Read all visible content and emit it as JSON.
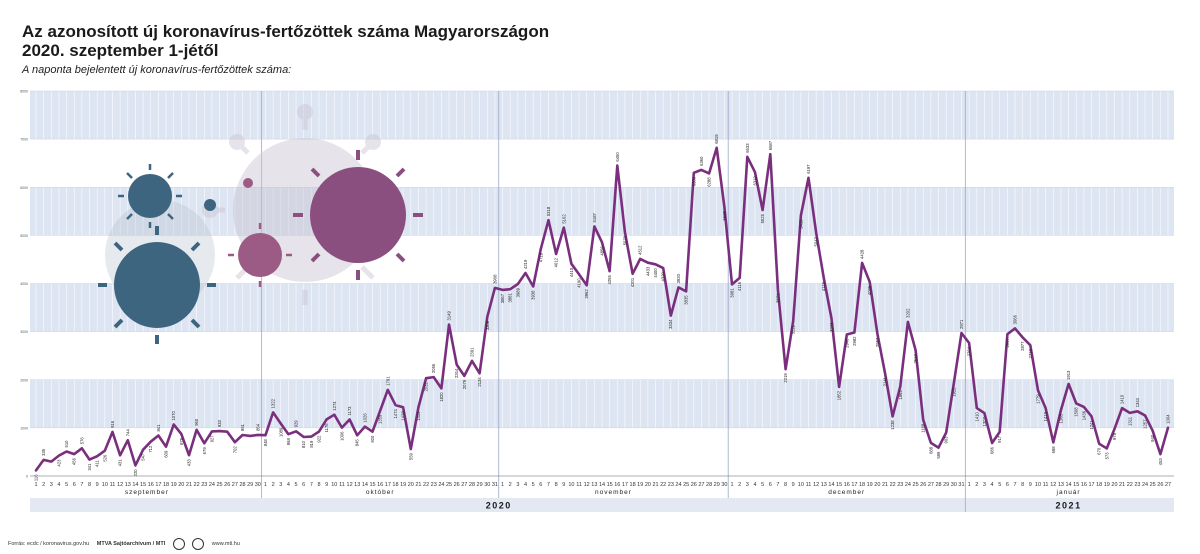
{
  "header": {
    "title_line1": "Az azonosított új koronavírus-fertőzöttek száma Magyarországon",
    "title_line2": "2020. szeptember 1-jétől",
    "subtitle": "A naponta bejelentett új koronavírus-fertőzöttek száma:"
  },
  "footer": {
    "source": "Forrás: ecdc / koronavirus.gov.hu",
    "credit": "MTVA Sajtóarchívum / MTI",
    "website": "www.mti.hu"
  },
  "chart_data": {
    "type": "line",
    "ylim": [
      0,
      8000
    ],
    "yticks": [
      0,
      1000,
      2000,
      3000,
      4000,
      5000,
      6000,
      7000,
      8000
    ],
    "grid": true,
    "colors": {
      "line": "#7a2f7e",
      "band": "#dde4f2",
      "month_divider": "#9aaac8",
      "year_bar": "#e3e8f3"
    },
    "years": [
      {
        "label": "2020",
        "start_index": 0,
        "end_index": 121
      },
      {
        "label": "2021",
        "start_index": 122,
        "end_index": 148
      }
    ],
    "months": [
      {
        "label": "szeptember",
        "days": 30
      },
      {
        "label": "október",
        "days": 31
      },
      {
        "label": "november",
        "days": 30
      },
      {
        "label": "december",
        "days": 31
      },
      {
        "label": "január",
        "days": 27
      }
    ],
    "values": [
      116,
      335,
      300,
      423,
      510,
      456,
      576,
      341,
      411,
      526,
      916,
      431,
      744,
      220,
      547,
      712,
      841,
      609,
      1070,
      875,
      433,
      960,
      679,
      927,
      933,
      920,
      702,
      851,
      833,
      854,
      848,
      1322,
      1089,
      868,
      929,
      810,
      819,
      922,
      1176,
      1274,
      1006,
      1173,
      845,
      1026,
      920,
      1359,
      1791,
      1474,
      1428,
      559,
      1423,
      2032,
      2056,
      1820,
      3149,
      2314,
      2079,
      2391,
      2134,
      3308,
      3908,
      3867,
      3881,
      3989,
      4219,
      3938,
      4719,
      5318,
      4612,
      5162,
      4410,
      4190,
      3962,
      5187,
      4856,
      4255,
      6450,
      5070,
      4201,
      4512,
      4433,
      4400,
      4320,
      3334,
      3920,
      3835,
      6300,
      6360,
      6288,
      6819,
      5588,
      3981,
      4116,
      6633,
      6312,
      5525,
      6687,
      3871,
      2219,
      3221,
      5415,
      6197,
      5047,
      4113,
      3273,
      1852,
      2940,
      2982,
      4428,
      4035,
      2957,
      2141,
      1238,
      1864,
      3202,
      2613,
      1168,
      688,
      589,
      903,
      1922,
      2971,
      2764,
      1410,
      1307,
      686,
      917,
      2947,
      3066,
      2877,
      2718,
      1779,
      1413,
      698,
      1368,
      1913,
      1508,
      1436,
      1241,
      670,
      573,
      978,
      1410,
      1311,
      1344,
      1257,
      940,
      453,
      1004
    ],
    "point_labels": {
      "0": "116",
      "1": "335",
      "3": "423",
      "4": "510",
      "5": "456",
      "6": "576",
      "7": "341",
      "8": "411",
      "9": "526",
      "10": "916",
      "11": "431",
      "12": "744",
      "13": "220",
      "14": "547",
      "15": "712",
      "16": "841",
      "17": "609",
      "18": "1070",
      "19": "875",
      "20": "433",
      "21": "960",
      "22": "679",
      "23": "927",
      "24": "933",
      "26": "702",
      "27": "851",
      "29": "854",
      "30": "848",
      "31": "1322",
      "32": "1089",
      "33": "868",
      "34": "929",
      "35": "810",
      "36": "819",
      "37": "922",
      "38": "1176",
      "39": "1274",
      "40": "1006",
      "41": "1173",
      "42": "845",
      "43": "1026",
      "44": "920",
      "45": "1359",
      "46": "1791",
      "47": "1474",
      "48": "1428",
      "49": "559",
      "50": "1423",
      "51": "2032",
      "52": "2056",
      "53": "1820",
      "54": "3149",
      "55": "2314",
      "56": "2079",
      "57": "2391",
      "58": "2134",
      "59": "3308",
      "60": "3908",
      "61": "3867",
      "62": "3881",
      "63": "3989",
      "64": "4219",
      "65": "3938",
      "66": "4719",
      "67": "5318",
      "68": "4612",
      "69": "5162",
      "70": "4410",
      "71": "4190",
      "72": "3962",
      "73": "5187",
      "74": "4856",
      "75": "4255",
      "76": "6450",
      "77": "5070",
      "78": "4201",
      "79": "4512",
      "80": "4433",
      "81": "4400",
      "82": "4320",
      "83": "3334",
      "84": "3920",
      "85": "3835",
      "86": "6300",
      "87": "6360",
      "88": "6288",
      "89": "6819",
      "90": "5588",
      "91": "3981",
      "92": "4116",
      "93": "6633",
      "94": "6312",
      "95": "5525",
      "96": "6687",
      "97": "3871",
      "98": "2219",
      "99": "3221",
      "100": "5415",
      "101": "6197",
      "102": "5047",
      "103": "4113",
      "104": "3273",
      "105": "1852",
      "106": "2940",
      "107": "2982",
      "108": "4428",
      "109": "4035",
      "110": "2957",
      "111": "2141",
      "112": "1238",
      "113": "1864",
      "114": "3202",
      "115": "2613",
      "116": "1168",
      "117": "688",
      "118": "589",
      "119": "903",
      "120": "1922",
      "121": "2971",
      "122": "2764",
      "123": "1410",
      "124": "1307",
      "125": "686",
      "126": "917",
      "127": "2947",
      "128": "3066",
      "129": "2877",
      "130": "2718",
      "131": "1779",
      "132": "1413",
      "133": "698",
      "134": "1368",
      "135": "1913",
      "136": "1508",
      "137": "1436",
      "138": "1241",
      "139": "670",
      "140": "573",
      "141": "978",
      "142": "1410",
      "143": "1311",
      "144": "1344",
      "145": "1257",
      "146": "940",
      "147": "453",
      "148": "1004"
    }
  }
}
